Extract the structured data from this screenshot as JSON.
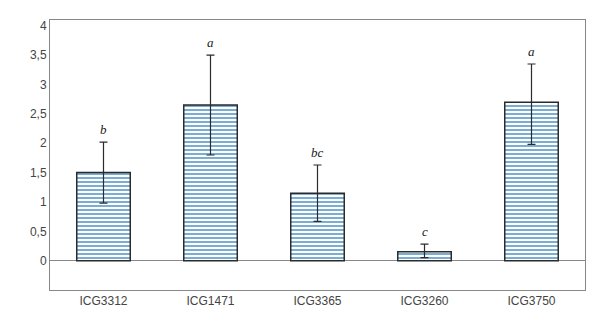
{
  "chart_data": {
    "type": "bar",
    "categories": [
      "ICG3312",
      "ICG1471",
      "ICG3365",
      "ICG3260",
      "ICG3750"
    ],
    "values": [
      1.5,
      2.65,
      1.15,
      0.15,
      2.7
    ],
    "error_upper": [
      0.52,
      0.85,
      0.48,
      0.13,
      0.65
    ],
    "error_lower": [
      0.52,
      0.85,
      0.48,
      0.1,
      0.72
    ],
    "annotations": [
      "b",
      "a",
      "bc",
      "c",
      "a"
    ],
    "ylim": [
      -0.5,
      4.1
    ],
    "yticks": [
      0,
      {
        "value": 0.5,
        "label": "0,5"
      },
      1,
      {
        "value": 1.5,
        "label": "1,5"
      },
      2,
      {
        "value": 2.5,
        "label": "2,5"
      },
      3,
      {
        "value": 3.5,
        "label": "3,5"
      },
      4
    ],
    "grid": false
  }
}
